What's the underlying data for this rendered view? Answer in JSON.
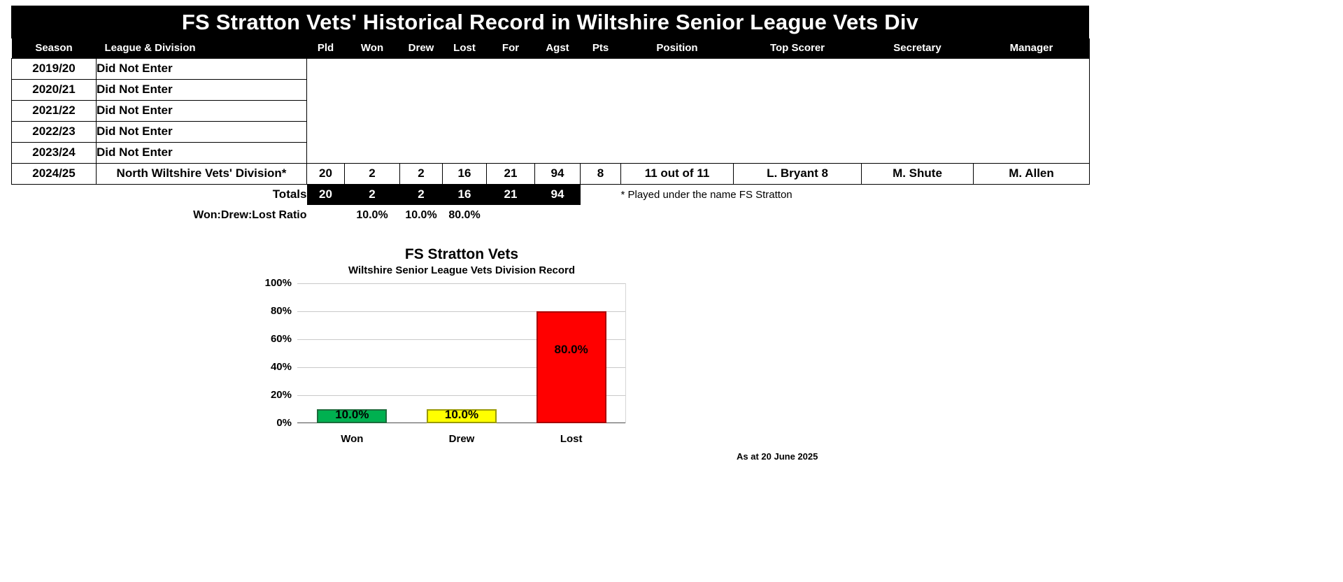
{
  "title": "FS Stratton Vets' Historical Record in Wiltshire Senior League Vets Div",
  "table": {
    "columns": [
      "Season",
      "League & Division",
      "Pld",
      "Won",
      "Drew",
      "Lost",
      "For",
      "Agst",
      "Pts",
      "Position",
      "Top Scorer",
      "Secretary",
      "Manager"
    ],
    "rows": [
      {
        "season": "2019/20",
        "league": "Did Not Enter"
      },
      {
        "season": "2020/21",
        "league": "Did Not Enter"
      },
      {
        "season": "2021/22",
        "league": "Did Not Enter"
      },
      {
        "season": "2022/23",
        "league": "Did Not Enter"
      },
      {
        "season": "2023/24",
        "league": "Did Not Enter"
      },
      {
        "season": "2024/25",
        "league": "North Wiltshire Vets' Division*",
        "pld": "20",
        "won": "2",
        "drew": "2",
        "lost": "16",
        "for": "21",
        "agst": "94",
        "pts": "8",
        "position": "11 out of 11",
        "top_scorer": "L. Bryant 8",
        "secretary": "M. Shute",
        "manager": "M. Allen"
      }
    ],
    "totals": {
      "label": "Totals",
      "pld": "20",
      "won": "2",
      "drew": "2",
      "lost": "16",
      "for": "21",
      "agst": "94"
    },
    "footnote": "* Played under the name FS Stratton",
    "ratio": {
      "label": "Won:Drew:Lost Ratio",
      "won": "10.0%",
      "drew": "10.0%",
      "lost": "80.0%"
    }
  },
  "chart_data": {
    "type": "bar",
    "title": "FS Stratton Vets",
    "subtitle": "Wiltshire Senior League Vets Division Record",
    "categories": [
      "Won",
      "Drew",
      "Lost"
    ],
    "values": [
      10.0,
      10.0,
      80.0
    ],
    "labels": [
      "10.0%",
      "10.0%",
      "80.0%"
    ],
    "colors": [
      "#00B050",
      "#FFFF00",
      "#FF0000"
    ],
    "border_colors": [
      "#1E6B3C",
      "#9A9A00",
      "#A80000"
    ],
    "ylim": [
      0,
      100
    ],
    "yticks": [
      "100%",
      "80%",
      "60%",
      "40%",
      "20%",
      "0%"
    ],
    "xlabel": "",
    "ylabel": "",
    "grid": true,
    "legend": "none"
  },
  "footer": {
    "as_at": "As at 20 June 2025"
  }
}
